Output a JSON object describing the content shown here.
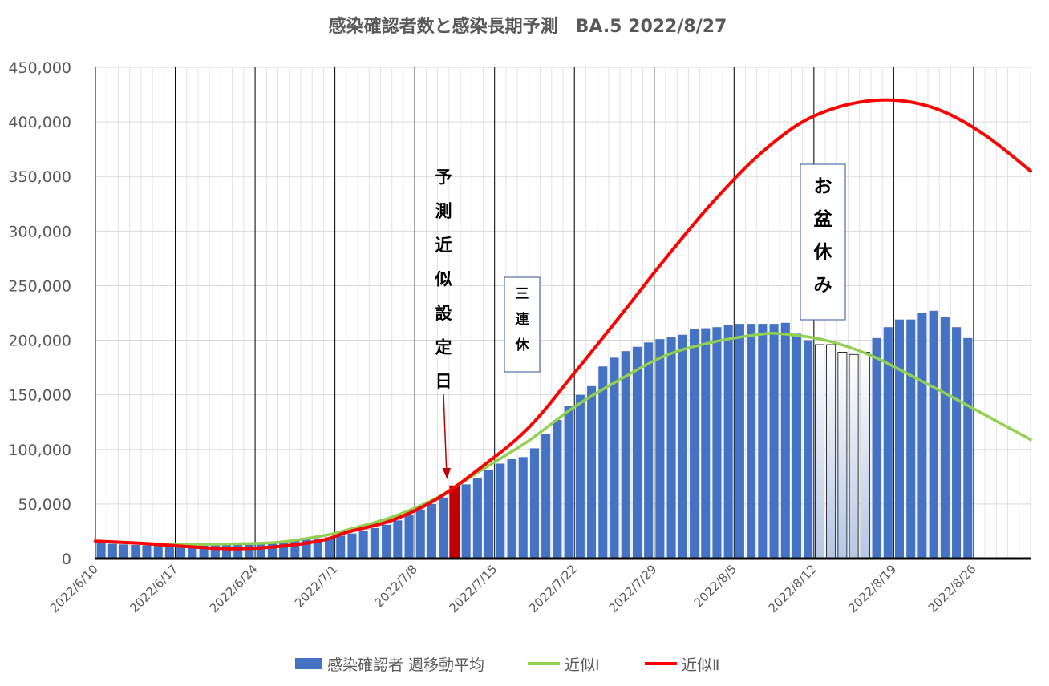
{
  "chart_data": {
    "type": "bar",
    "title": "感染確認者数と感染長期予測　BA.5  2022/8/27",
    "xlabel": "",
    "ylabel": "",
    "ylim": [
      0,
      450000
    ],
    "yticks": [
      0,
      50000,
      100000,
      150000,
      200000,
      250000,
      300000,
      350000,
      400000,
      450000
    ],
    "ytick_labels": [
      "0",
      "50,000",
      "100,000",
      "150,000",
      "200,000",
      "250,000",
      "300,000",
      "350,000",
      "400,000",
      "450,000"
    ],
    "x_start": "2022/6/10",
    "x_end": "2022/8/31",
    "xtick_labels": [
      "2022/6/10",
      "2022/6/17",
      "2022/6/24",
      "2022/7/1",
      "2022/7/8",
      "2022/7/15",
      "2022/7/22",
      "2022/7/29",
      "2022/8/5",
      "2022/8/12",
      "2022/8/19",
      "2022/8/26"
    ],
    "grid": "vertical",
    "legend_position": "bottom",
    "series": [
      {
        "name": "感染確認者 週移動平均",
        "type": "bar",
        "color": "#4472C4",
        "start_date": "2022/6/10",
        "values": [
          14000,
          13500,
          13000,
          12500,
          12200,
          12000,
          12000,
          12500,
          13000,
          13500,
          14000,
          14200,
          14500,
          14800,
          15000,
          15300,
          15800,
          16500,
          17500,
          18500,
          19500,
          21000,
          23000,
          25000,
          28000,
          31000,
          35000,
          40000,
          45000,
          50000,
          56000,
          62000,
          68000,
          74000,
          81000,
          87000,
          91000,
          93000,
          101000,
          114000,
          127000,
          140000,
          150000,
          158000,
          176000,
          184000,
          190000,
          194000,
          198000,
          201000,
          203000,
          205000,
          210000,
          211000,
          212000,
          214000,
          215000,
          215000,
          215000,
          215000,
          216000,
          206000,
          200000,
          196000,
          196000,
          189000,
          187000,
          189000,
          202000,
          212000,
          219000,
          219000,
          225000,
          227000,
          221000,
          212000,
          202000
        ]
      },
      {
        "name": "近似Ⅰ",
        "type": "line",
        "color": "#92D050",
        "x": [
          "2022/6/10",
          "2022/6/14",
          "2022/6/18",
          "2022/6/22",
          "2022/6/26",
          "2022/6/30",
          "2022/7/2",
          "2022/7/6",
          "2022/7/10",
          "2022/7/14",
          "2022/7/18",
          "2022/7/22",
          "2022/7/26",
          "2022/7/30",
          "2022/8/3",
          "2022/8/7",
          "2022/8/9",
          "2022/8/13",
          "2022/8/17",
          "2022/8/21",
          "2022/8/25",
          "2022/8/31"
        ],
        "y": [
          16000,
          14000,
          13000,
          13500,
          15000,
          21000,
          26000,
          38000,
          56000,
          82000,
          108000,
          139000,
          164000,
          186000,
          198000,
          205000,
          206000,
          200000,
          186000,
          165000,
          143000,
          109000
        ]
      },
      {
        "name": "近似Ⅱ",
        "type": "line",
        "color": "#FF0000",
        "x": [
          "2022/6/10",
          "2022/6/14",
          "2022/6/18",
          "2022/6/22",
          "2022/6/26",
          "2022/6/30",
          "2022/7/2",
          "2022/7/6",
          "2022/7/10",
          "2022/7/14",
          "2022/7/18",
          "2022/7/22",
          "2022/7/26",
          "2022/7/30",
          "2022/8/3",
          "2022/8/7",
          "2022/8/11",
          "2022/8/15",
          "2022/8/19",
          "2022/8/23",
          "2022/8/27",
          "2022/8/31"
        ],
        "y": [
          16000,
          14000,
          11000,
          9000,
          11000,
          17000,
          24000,
          35000,
          55000,
          85000,
          120000,
          170000,
          222000,
          275000,
          325000,
          368000,
          400000,
          416000,
          420000,
          411000,
          388000,
          355000
        ]
      }
    ],
    "highlight": {
      "prediction_date": "2022/7/11",
      "prediction_value": 67000,
      "prediction_color": "#C00000",
      "obon_dates": [
        "2022/8/12",
        "2022/8/13",
        "2022/8/14",
        "2022/8/15",
        "2022/8/16"
      ]
    },
    "annotations": [
      {
        "id": "prediction-label",
        "text": [
          "予",
          "測",
          "近",
          "似",
          "設",
          "定",
          "日"
        ]
      },
      {
        "id": "sanrenkyu-label",
        "text": [
          "三",
          "連",
          "休"
        ]
      },
      {
        "id": "obon-label",
        "text": [
          "お",
          "盆",
          "休",
          "み"
        ]
      }
    ]
  }
}
